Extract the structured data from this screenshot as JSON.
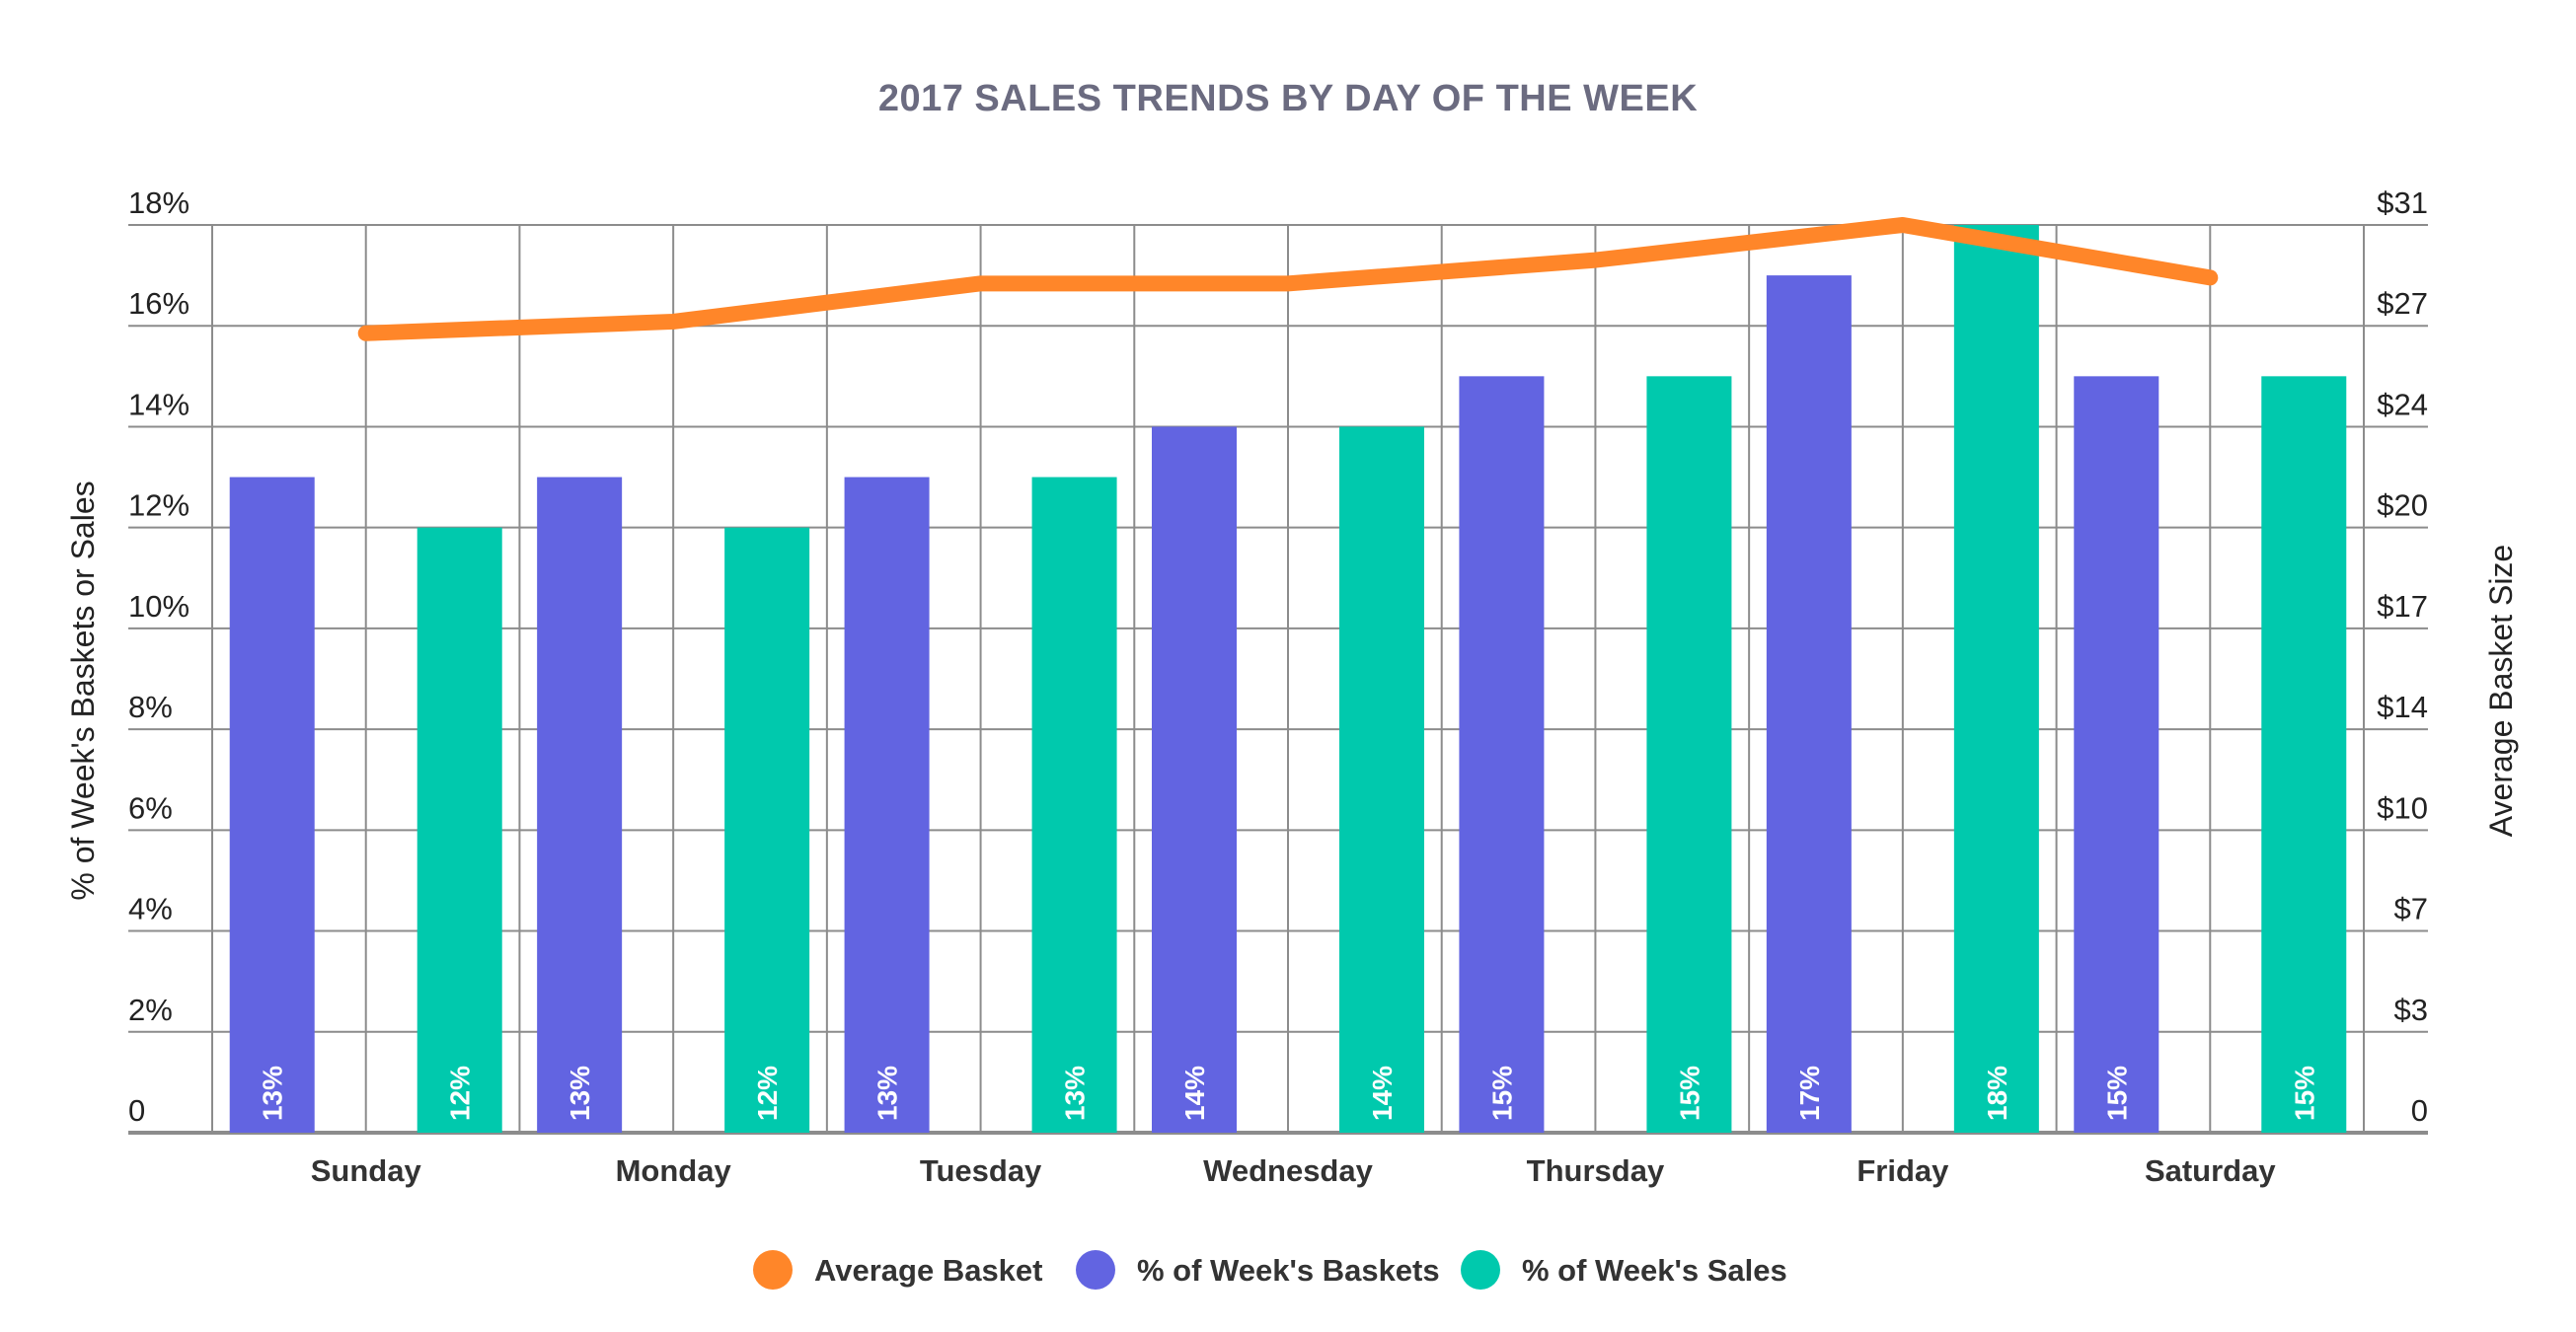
{
  "chart_data": {
    "type": "bar",
    "title": "2017 SALES TRENDS BY DAY OF THE WEEK",
    "categories": [
      "Sunday",
      "Monday",
      "Tuesday",
      "Wednesday",
      "Thursday",
      "Friday",
      "Saturday"
    ],
    "ylabel": "% of Week's Baskets or Sales",
    "y2label": "Average Basket Size",
    "ylim": [
      0,
      18
    ],
    "y_ticks": [
      "0",
      "2%",
      "4%",
      "6%",
      "8%",
      "10%",
      "12%",
      "14%",
      "16%",
      "18%"
    ],
    "y2lim": [
      0,
      31
    ],
    "y2_ticks": [
      "0",
      "$3",
      "$7",
      "$10",
      "$14",
      "$17",
      "$20",
      "$24",
      "$27",
      "$31"
    ],
    "grid": true,
    "legend_position": "bottom",
    "series": [
      {
        "name": "Average Basket",
        "type": "line",
        "axis": "right",
        "color": "#ff8629",
        "values": [
          27.3,
          27.7,
          29.0,
          29.0,
          29.8,
          31.0,
          29.2
        ]
      },
      {
        "name": "% of Week's Baskets",
        "type": "bar",
        "axis": "left",
        "color": "#6264e1",
        "values": [
          13,
          13,
          13,
          14,
          15,
          17,
          15
        ],
        "labels": [
          "13%",
          "13%",
          "13%",
          "14%",
          "15%",
          "17%",
          "15%"
        ]
      },
      {
        "name": "% of Week's Sales",
        "type": "bar",
        "axis": "left",
        "color": "#00c9ad",
        "values": [
          12,
          12,
          13,
          14,
          15,
          18,
          15
        ],
        "labels": [
          "12%",
          "12%",
          "13%",
          "14%",
          "15%",
          "18%",
          "15%"
        ]
      }
    ]
  }
}
